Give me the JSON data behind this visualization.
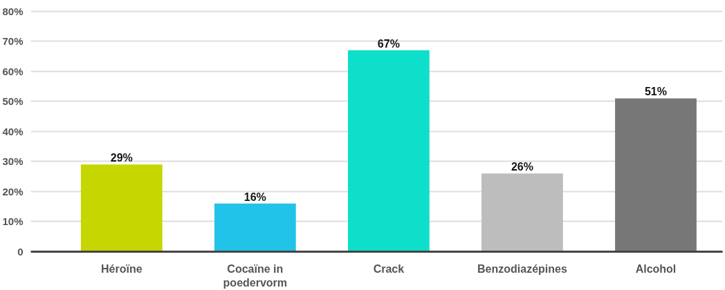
{
  "chart_data": {
    "type": "bar",
    "categories": [
      "Héroïne",
      "Cocaïne in poedervorm",
      "Crack",
      "Benzodiazépines",
      "Alcohol"
    ],
    "values": [
      29,
      16,
      67,
      26,
      51
    ],
    "colors": [
      "#c5d600",
      "#22c3e8",
      "#0ddfca",
      "#bdbdbd",
      "#777777"
    ],
    "value_labels": [
      "29%",
      "16%",
      "67%",
      "26%",
      "51%"
    ],
    "ylim": [
      0,
      80
    ],
    "yticks": [
      0,
      {
        "value": 10,
        "label": "10%"
      },
      {
        "value": 20,
        "label": "20%"
      },
      {
        "value": 30,
        "label": "30%"
      },
      {
        "value": 40,
        "label": "40%"
      },
      {
        "value": 50,
        "label": "50%"
      },
      {
        "value": 60,
        "label": "60%"
      },
      {
        "value": 70,
        "label": "70%"
      },
      {
        "value": 80,
        "label": "80%"
      }
    ],
    "grid": "y"
  }
}
